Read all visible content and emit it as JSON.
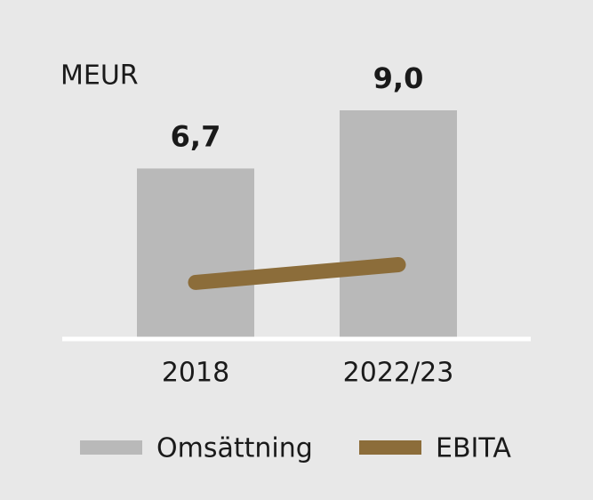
{
  "chart_data": {
    "type": "bar",
    "y_label": "MEUR",
    "categories": [
      "2018",
      "2022/23"
    ],
    "series": [
      {
        "name": "Omsättning",
        "type": "bar",
        "color": "#b9b9b9",
        "values": [
          6.7,
          9.0
        ],
        "value_labels": [
          "6,7",
          "9,0"
        ]
      },
      {
        "name": "EBITA",
        "type": "line",
        "color": "#8c6d3a",
        "values": [
          2.2,
          2.9
        ]
      }
    ]
  }
}
